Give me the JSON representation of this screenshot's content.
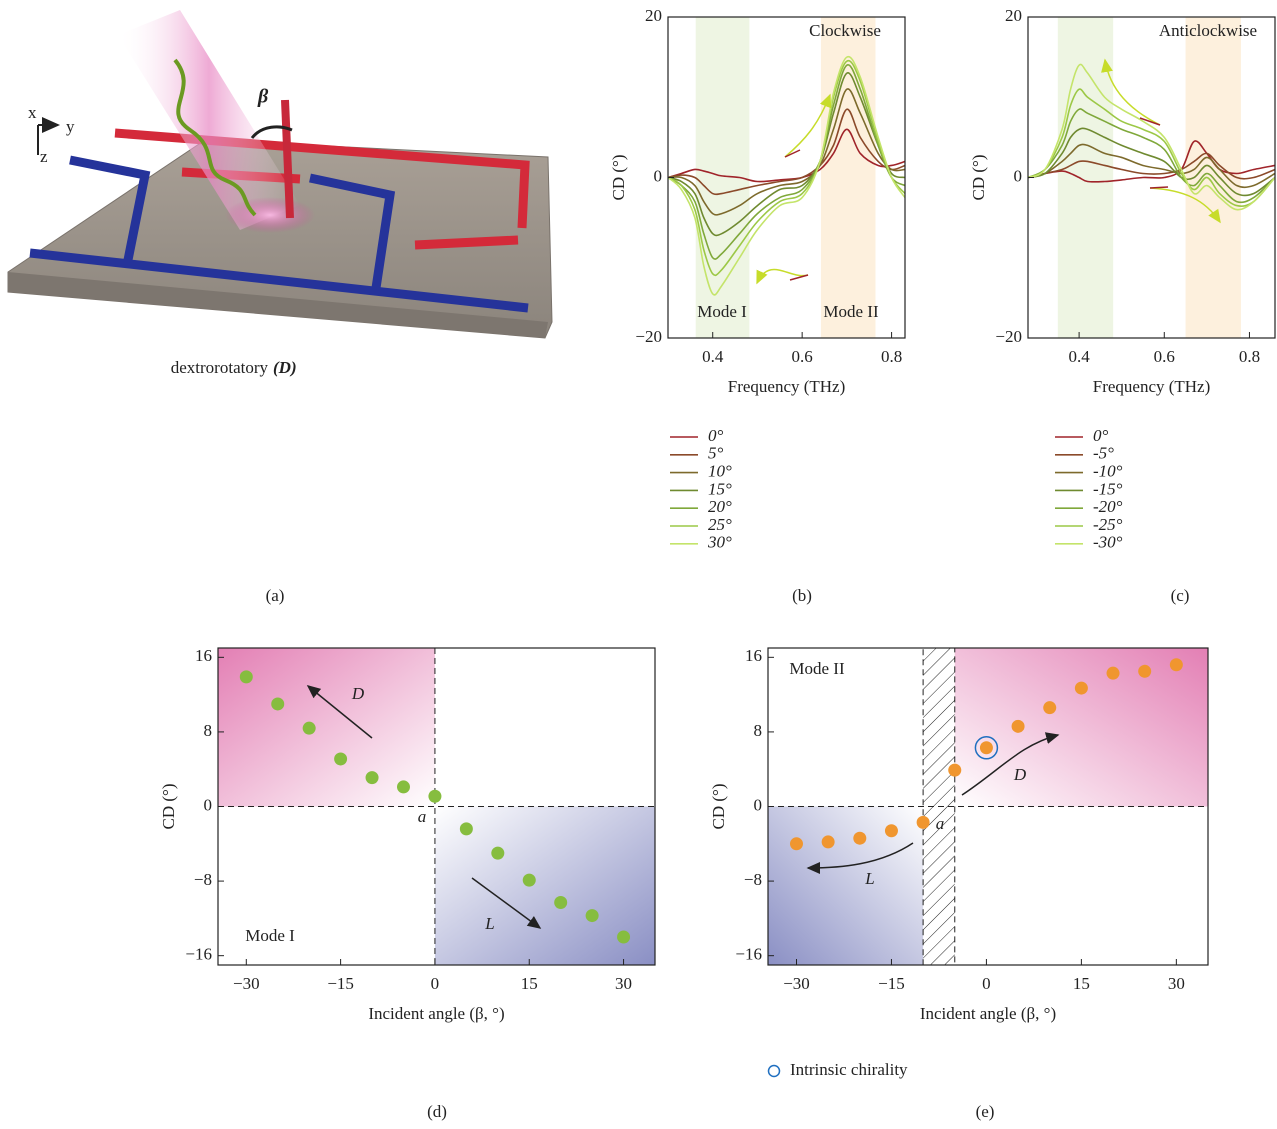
{
  "illustration": {
    "caption": "dextrorotatory",
    "caption_symbol": "(D)",
    "beta": "β",
    "axes": [
      "x",
      "y",
      "z"
    ]
  },
  "panel_labels": [
    "(a)",
    "(b)",
    "(c)",
    "(d)",
    "(e)"
  ],
  "chart_data": [
    {
      "type": "line",
      "xlabel": "Frequency (THz)",
      "ylabel": "CD (°)",
      "annotations": [
        "Clockwise",
        "Mode I",
        "Mode II"
      ],
      "xlim": [
        0.3,
        0.83
      ],
      "xticks": [
        0.4,
        0.6,
        0.8
      ],
      "ylim": [
        -20,
        20
      ],
      "yticks": [
        {
          "value": -20,
          "label": "−20"
        },
        0,
        20
      ],
      "bands": [
        {
          "from": 0.362,
          "to": 0.482,
          "color": "#eef5e3"
        },
        {
          "from": 0.642,
          "to": 0.764,
          "color": "#fdf0dd"
        }
      ],
      "x": [
        0.3,
        0.33,
        0.36,
        0.38,
        0.4,
        0.42,
        0.46,
        0.5,
        0.55,
        0.6,
        0.64,
        0.67,
        0.7,
        0.73,
        0.77,
        0.8,
        0.83
      ],
      "series": [
        {
          "name": "0°",
          "color": "#a0242a",
          "values": [
            0,
            0.5,
            1,
            0.8,
            0.5,
            0.2,
            0,
            -0.5,
            -0.3,
            0,
            1,
            3,
            6,
            3,
            1.5,
            1.5,
            2
          ]
        },
        {
          "name": "5°",
          "color": "#8b4a2a",
          "values": [
            0,
            0.3,
            0,
            -1,
            -2,
            -2,
            -1.5,
            -1,
            -0.5,
            0,
            1.5,
            4,
            8.5,
            5,
            2,
            1,
            1.5
          ]
        },
        {
          "name": "10°",
          "color": "#7d6a2c",
          "values": [
            0,
            0,
            -1,
            -3,
            -4.5,
            -4.5,
            -3.5,
            -2,
            -1,
            -0.5,
            1.5,
            6,
            11,
            8,
            3,
            1,
            1
          ]
        },
        {
          "name": "15°",
          "color": "#6f8a30",
          "values": [
            0,
            -0.5,
            -2,
            -5,
            -7,
            -7,
            -5.5,
            -3.5,
            -1.5,
            -1,
            2,
            8,
            13,
            10,
            4,
            0.5,
            0
          ]
        },
        {
          "name": "20°",
          "color": "#7fa83a",
          "values": [
            0,
            -1,
            -3,
            -7,
            -10,
            -9.5,
            -7,
            -4.5,
            -2.5,
            -1.5,
            2,
            9,
            14,
            11,
            4,
            0,
            -1
          ]
        },
        {
          "name": "25°",
          "color": "#9cc846",
          "values": [
            0,
            -1,
            -4,
            -9,
            -12,
            -11.5,
            -8.5,
            -5.5,
            -3,
            -2,
            2,
            10,
            14.5,
            12,
            4.5,
            0,
            -2
          ]
        },
        {
          "name": "30°",
          "color": "#c4e46a",
          "values": [
            0,
            -1.5,
            -5,
            -11,
            -14.5,
            -13.5,
            -10,
            -6.5,
            -3.5,
            -2.5,
            2,
            10.5,
            15,
            12.5,
            5,
            0,
            -2.5
          ]
        }
      ]
    },
    {
      "type": "line",
      "xlabel": "Frequency (THz)",
      "ylabel": "CD (°)",
      "annotations": [
        "Anticlockwise"
      ],
      "xlim": [
        0.28,
        0.86
      ],
      "xticks": [
        0.4,
        0.6,
        0.8
      ],
      "ylim": [
        -20,
        20
      ],
      "yticks": [
        {
          "value": -20,
          "label": "−20"
        },
        0,
        20
      ],
      "bands": [
        {
          "from": 0.35,
          "to": 0.48,
          "color": "#eef5e3"
        },
        {
          "from": 0.65,
          "to": 0.78,
          "color": "#fdf0dd"
        }
      ],
      "x": [
        0.28,
        0.32,
        0.36,
        0.38,
        0.4,
        0.42,
        0.46,
        0.5,
        0.55,
        0.6,
        0.64,
        0.67,
        0.7,
        0.73,
        0.77,
        0.81,
        0.86
      ],
      "series": [
        {
          "name": "0°",
          "color": "#a0242a",
          "values": [
            0,
            0.5,
            0.8,
            0.5,
            0,
            -0.5,
            -0.5,
            -0.3,
            0,
            0,
            1,
            4.5,
            3,
            1,
            0.5,
            1,
            1.5
          ]
        },
        {
          "name": "-5°",
          "color": "#8b4a2a",
          "values": [
            0,
            0.5,
            1,
            1.5,
            2,
            2,
            1.5,
            1,
            0.5,
            0.5,
            1,
            2,
            3,
            1.5,
            0,
            0,
            1
          ]
        },
        {
          "name": "-10°",
          "color": "#7d6a2c",
          "values": [
            0,
            0.5,
            2,
            3,
            4,
            4,
            3,
            2.5,
            1.5,
            1,
            0.5,
            1,
            2.5,
            1,
            -1,
            -1,
            0.5
          ]
        },
        {
          "name": "-15°",
          "color": "#6f8a30",
          "values": [
            0,
            0.5,
            3,
            5,
            6,
            6,
            5,
            4,
            3,
            2,
            0,
            0,
            1.5,
            0,
            -2,
            -2,
            0
          ]
        },
        {
          "name": "-20°",
          "color": "#7fa83a",
          "values": [
            0,
            1,
            4,
            7,
            8.5,
            8,
            7,
            6,
            5,
            3.5,
            0,
            -1,
            0.5,
            -1,
            -3,
            -2.5,
            0
          ]
        },
        {
          "name": "-25°",
          "color": "#9cc846",
          "values": [
            0,
            1,
            5,
            9,
            11,
            10,
            8.5,
            7,
            6,
            4.5,
            0.5,
            -1.5,
            0,
            -2,
            -3.5,
            -3,
            0
          ]
        },
        {
          "name": "-30°",
          "color": "#c4e46a",
          "values": [
            0,
            1,
            6,
            11,
            14,
            13,
            10,
            8.5,
            7,
            5,
            1,
            -2,
            -1,
            -2.5,
            -4,
            -3,
            0
          ]
        }
      ]
    },
    {
      "type": "scatter",
      "xlabel": "Incident angle (β, °)",
      "ylabel": "CD (°)",
      "annotations": [
        "D",
        "L",
        "a",
        "Mode I"
      ],
      "xlim": [
        -34.5,
        35
      ],
      "xticks": [
        {
          "value": -30,
          "label": "−30"
        },
        {
          "value": -15,
          "label": "−15"
        },
        0,
        15,
        30
      ],
      "ylim": [
        -17,
        17
      ],
      "yticks": [
        {
          "value": -16,
          "label": "−16"
        },
        {
          "value": -8,
          "label": "−8"
        },
        0,
        8,
        16
      ],
      "zero_lines": [
        "x",
        "y"
      ],
      "shading": [
        {
          "xlim": [
            -34.5,
            0
          ],
          "ylim": [
            0,
            17
          ],
          "color": "#e37fb4"
        },
        {
          "xlim": [
            0,
            35
          ],
          "ylim": [
            -17,
            0
          ],
          "color": "#8a8fc4"
        }
      ],
      "series": [
        {
          "color": "#86bd3f",
          "x": [
            -30,
            -25,
            -20,
            -15,
            -10,
            -5,
            0,
            5,
            10,
            15,
            20,
            25,
            30
          ],
          "values": [
            13.9,
            11,
            8.4,
            5.1,
            3.1,
            2.1,
            1.1,
            -2.4,
            -5,
            -7.9,
            -10.3,
            -11.7,
            -14
          ]
        }
      ]
    },
    {
      "type": "scatter",
      "xlabel": "Incident angle (β, °)",
      "ylabel": "CD (°)",
      "annotations": [
        "Mode II",
        "D",
        "L",
        "a"
      ],
      "xlim": [
        -34.5,
        35
      ],
      "xticks": [
        {
          "value": -30,
          "label": "−30"
        },
        {
          "value": -15,
          "label": "−15"
        },
        0,
        15,
        30
      ],
      "ylim": [
        -17,
        17
      ],
      "yticks": [
        {
          "value": -16,
          "label": "−16"
        },
        {
          "value": -8,
          "label": "−8"
        },
        0,
        8,
        16
      ],
      "zero_lines": [
        "y"
      ],
      "hatch": [
        -10,
        -5
      ],
      "shading": [
        {
          "xlim": [
            -5,
            35
          ],
          "ylim": [
            0,
            17
          ],
          "color": "#e37fb4"
        },
        {
          "xlim": [
            -34.5,
            -10
          ],
          "ylim": [
            -17,
            0
          ],
          "color": "#8a8fc4"
        }
      ],
      "highlight": {
        "name": "Intrinsic chirality",
        "index": 6,
        "color": "#1f6fc0"
      },
      "series": [
        {
          "color": "#f0962f",
          "x": [
            -30,
            -25,
            -20,
            -15,
            -10,
            -5,
            0,
            5,
            10,
            15,
            20,
            25,
            30
          ],
          "values": [
            -4,
            -3.8,
            -3.4,
            -2.6,
            -1.7,
            3.9,
            6.3,
            8.6,
            10.6,
            12.7,
            14.3,
            14.5,
            15.2
          ]
        }
      ]
    }
  ]
}
